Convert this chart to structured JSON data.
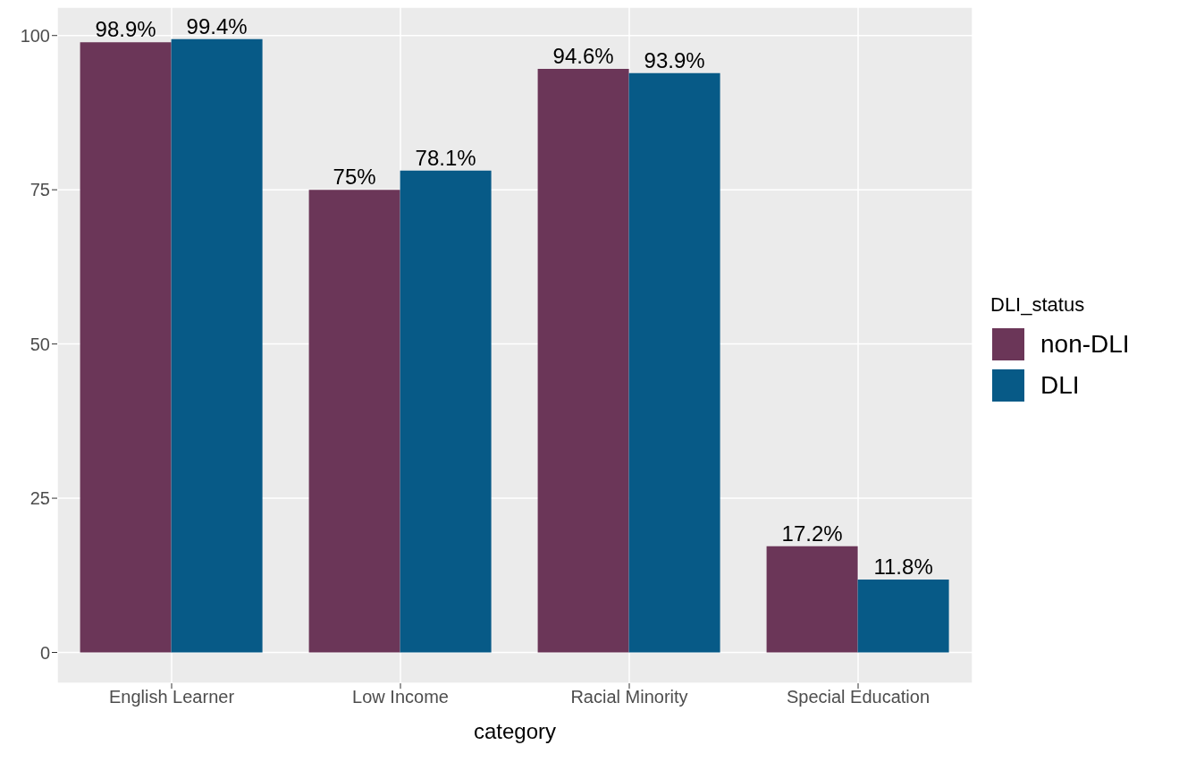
{
  "chart_data": {
    "type": "bar",
    "xlabel": "category",
    "legend_title": "DLI_status",
    "categories": [
      "English Learner",
      "Low Income",
      "Racial Minority",
      "Special Education"
    ],
    "series": [
      {
        "name": "non-DLI",
        "color": "#6b3658",
        "values": [
          98.9,
          75,
          94.6,
          17.2
        ],
        "value_labels": [
          "98.9%",
          "75%",
          "94.6%",
          "17.2%"
        ]
      },
      {
        "name": "DLI",
        "color": "#075a87",
        "values": [
          99.4,
          78.1,
          93.9,
          11.8
        ],
        "value_labels": [
          "99.4%",
          "78.1%",
          "93.9%",
          "11.8%"
        ]
      }
    ],
    "ylim": [
      -5,
      104.6
    ],
    "yticks": [
      0,
      25,
      50,
      75,
      100
    ],
    "grid": true,
    "legend": "right"
  }
}
